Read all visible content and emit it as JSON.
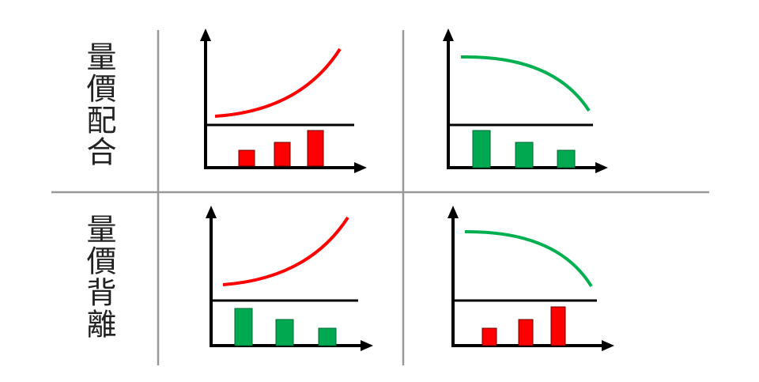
{
  "rows": [
    {
      "label": "量價配合"
    },
    {
      "label": "量價背離"
    }
  ]
}
